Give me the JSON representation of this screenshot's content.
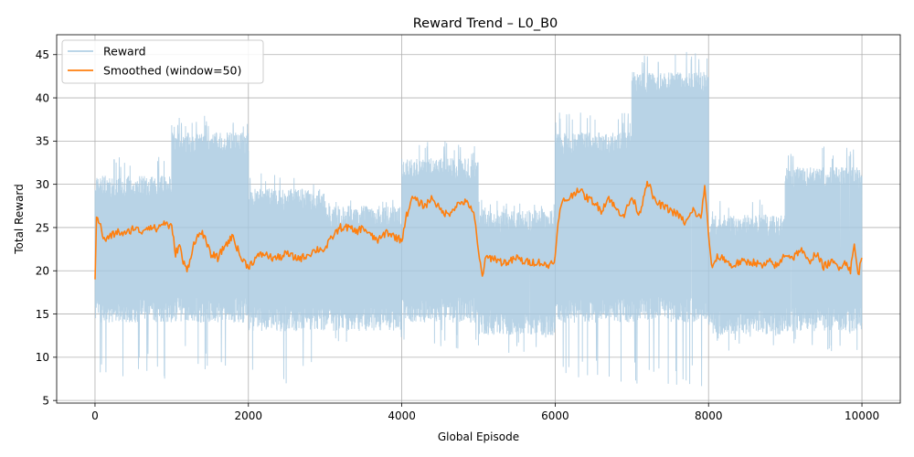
{
  "chart_data": {
    "type": "line",
    "title": "Reward Trend – L0_B0",
    "xlabel": "Global Episode",
    "ylabel": "Total Reward",
    "xlim": [
      -500,
      10500
    ],
    "ylim": [
      4.7,
      47.3
    ],
    "xticks": [
      0,
      2000,
      4000,
      6000,
      8000,
      10000
    ],
    "yticks": [
      5,
      10,
      15,
      20,
      25,
      30,
      35,
      40,
      45
    ],
    "grid": true,
    "legend_placement": "top-left",
    "series": [
      {
        "name": "Reward",
        "color": "#a6c8e0",
        "style": "raw",
        "segments": [
          {
            "x_start": 0,
            "x_end": 1000,
            "typical_range": [
              14,
              31
            ],
            "peak_max": 33.5,
            "min_dips": 7.5
          },
          {
            "x_start": 1000,
            "x_end": 2000,
            "typical_range": [
              14,
              36
            ],
            "peak_max": 38,
            "min_dips": 8.5
          },
          {
            "x_start": 2000,
            "x_end": 3000,
            "typical_range": [
              13,
              29.5
            ],
            "peak_max": 31.3,
            "min_dips": 6.8
          },
          {
            "x_start": 3000,
            "x_end": 4000,
            "typical_range": [
              13,
              27.5
            ],
            "peak_max": 28.9,
            "min_dips": 11.5
          },
          {
            "x_start": 4000,
            "x_end": 5000,
            "typical_range": [
              14,
              33
            ],
            "peak_max": 35,
            "min_dips": 10.5
          },
          {
            "x_start": 5000,
            "x_end": 6000,
            "typical_range": [
              12.5,
              27
            ],
            "peak_max": 28.2,
            "min_dips": 10.5
          },
          {
            "x_start": 6000,
            "x_end": 7000,
            "typical_range": [
              14,
              36
            ],
            "peak_max": 38.5,
            "min_dips": 7
          },
          {
            "x_start": 7000,
            "x_end": 8000,
            "typical_range": [
              14,
              43
            ],
            "peak_max": 45.5,
            "min_dips": 6.6
          },
          {
            "x_start": 8000,
            "x_end": 9000,
            "typical_range": [
              12.5,
              26.5
            ],
            "peak_max": 28.3,
            "min_dips": 10.5
          },
          {
            "x_start": 9000,
            "x_end": 10000,
            "typical_range": [
              13,
              32
            ],
            "peak_max": 34.4,
            "min_dips": 10.5
          }
        ]
      },
      {
        "name": "Smoothed (window=50)",
        "color": "#ff7f0e",
        "style": "smoothed",
        "x": [
          0,
          20,
          60,
          120,
          200,
          300,
          400,
          500,
          600,
          700,
          800,
          900,
          1000,
          1050,
          1100,
          1150,
          1200,
          1300,
          1400,
          1500,
          1600,
          1700,
          1800,
          1900,
          2000,
          2100,
          2200,
          2300,
          2400,
          2500,
          2600,
          2700,
          2800,
          2900,
          3000,
          3100,
          3200,
          3300,
          3400,
          3500,
          3600,
          3700,
          3800,
          3900,
          4000,
          4050,
          4100,
          4150,
          4200,
          4300,
          4400,
          4500,
          4600,
          4700,
          4800,
          4900,
          4950,
          5000,
          5050,
          5100,
          5200,
          5300,
          5400,
          5500,
          5600,
          5700,
          5800,
          5900,
          6000,
          6050,
          6100,
          6200,
          6300,
          6400,
          6500,
          6600,
          6700,
          6800,
          6900,
          7000,
          7100,
          7200,
          7300,
          7400,
          7500,
          7600,
          7700,
          7800,
          7900,
          7950,
          8000,
          8050,
          8100,
          8200,
          8300,
          8400,
          8500,
          8600,
          8700,
          8800,
          8900,
          9000,
          9100,
          9200,
          9300,
          9400,
          9500,
          9600,
          9700,
          9800,
          9850,
          9900,
          9950,
          10000
        ],
        "y": [
          19,
          26.5,
          25.5,
          23.5,
          24,
          24.5,
          24.2,
          25,
          24.5,
          25.2,
          24.8,
          25.6,
          25,
          22,
          23,
          21,
          20,
          23.5,
          24.5,
          22,
          21.5,
          23,
          24,
          21.5,
          20.5,
          21.5,
          22,
          21.5,
          21.5,
          22,
          21.5,
          21.5,
          22,
          22.5,
          22.5,
          24,
          25,
          25,
          24.5,
          25,
          24,
          23.5,
          24.5,
          24,
          23.5,
          26,
          27.5,
          28.5,
          28,
          27.5,
          28.5,
          27,
          26.5,
          27.5,
          28,
          27.5,
          26,
          22,
          19.5,
          21.5,
          21.5,
          21,
          21,
          21.5,
          21,
          21,
          21,
          20.5,
          21.5,
          26.5,
          28,
          28.5,
          29.5,
          28.5,
          28,
          27,
          28.5,
          27,
          26.5,
          28.5,
          26.5,
          30.5,
          28,
          27.5,
          27,
          26.5,
          25.5,
          27,
          26,
          30,
          24,
          20,
          21.5,
          21.5,
          20.5,
          21,
          21,
          21,
          20.5,
          21,
          20.5,
          22,
          21.5,
          22.5,
          21,
          22,
          20.5,
          21,
          20.5,
          21,
          20,
          23,
          19.5,
          21.5
        ]
      }
    ]
  }
}
